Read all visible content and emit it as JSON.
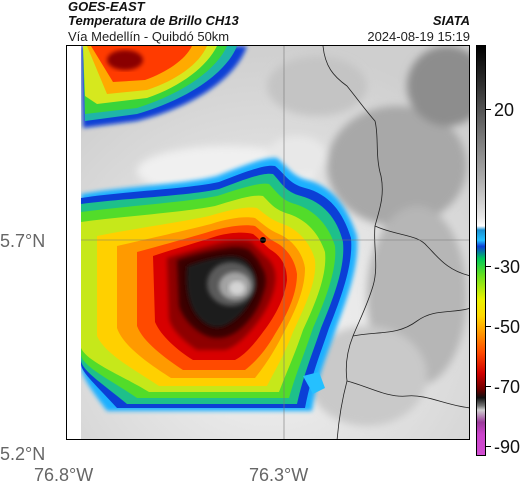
{
  "header": {
    "title": "GOES-EAST",
    "product": "Temperatura de Brillo CH13",
    "organization": "SIATA",
    "region": "Vía Medellín - Quibdó 50km",
    "datetime": "2024-08-19 15:19"
  },
  "axes": {
    "lat_labels": [
      "5.7°N",
      "5.2°N"
    ],
    "lon_labels": [
      "76.8°W",
      "76.3°W"
    ]
  },
  "colorbar": {
    "labels": [
      "20",
      "-30",
      "-50",
      "-70",
      "-90"
    ],
    "colors": {
      "warm": "#ffffff",
      "cold_cyan": "#25c0ff",
      "blue": "#0b3fd6",
      "green": "#00c85a",
      "yellow": "#ffd800",
      "orange": "#ff9a00",
      "red": "#d00000",
      "dark": "#111111",
      "magenta": "#cc44cc"
    }
  },
  "map": {
    "background_cloud_colors": [
      "#bdbdbd",
      "#dcdcdc",
      "#f2f2f2"
    ],
    "storm_center_color": "#9a9a9a"
  }
}
